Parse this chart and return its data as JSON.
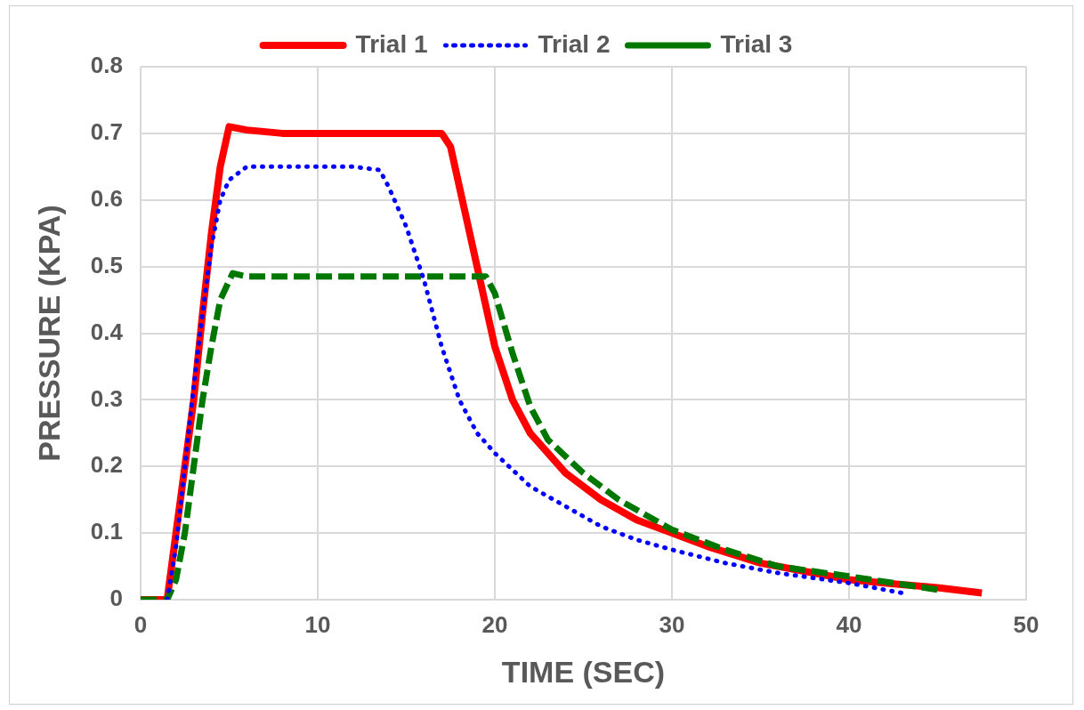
{
  "chart_data": {
    "type": "line",
    "xlabel": "TIME (SEC)",
    "ylabel": "PRESSURE (KPA)",
    "xlim": [
      0,
      50
    ],
    "xticks": [
      0,
      10,
      20,
      30,
      40,
      50
    ],
    "ylim": [
      0,
      0.8
    ],
    "yticks": [
      0,
      0.1,
      0.2,
      0.3,
      0.4,
      0.5,
      0.6,
      0.7,
      0.8
    ],
    "grid": true,
    "legend": "top",
    "marker": "none",
    "series": [
      {
        "name": "Trial 1",
        "color": "#ff0000",
        "line_style": "solid",
        "x": [
          0,
          1.5,
          2,
          2.5,
          3,
          3.5,
          4,
          4.5,
          5,
          6,
          8,
          10,
          12,
          14,
          16,
          17,
          17.5,
          18,
          18.5,
          19,
          19.5,
          20,
          21,
          22,
          23,
          24,
          26,
          28,
          30,
          32,
          35,
          38,
          40,
          42,
          45,
          47.5
        ],
        "values": [
          0,
          0,
          0.1,
          0.2,
          0.3,
          0.43,
          0.55,
          0.65,
          0.71,
          0.705,
          0.7,
          0.7,
          0.7,
          0.7,
          0.7,
          0.7,
          0.68,
          0.62,
          0.56,
          0.5,
          0.44,
          0.38,
          0.3,
          0.25,
          0.22,
          0.19,
          0.15,
          0.12,
          0.1,
          0.08,
          0.055,
          0.04,
          0.03,
          0.025,
          0.018,
          0.01
        ]
      },
      {
        "name": "Trial 2",
        "color": "#0000ff",
        "line_style": "dotted",
        "x": [
          1.5,
          2,
          2.5,
          3,
          3.5,
          4,
          4.5,
          5,
          6,
          8,
          10,
          12,
          13.5,
          14,
          15,
          16,
          17,
          18,
          19,
          20,
          22,
          24,
          26,
          28,
          30,
          33,
          36,
          40,
          43
        ],
        "values": [
          0,
          0.08,
          0.2,
          0.32,
          0.43,
          0.53,
          0.6,
          0.63,
          0.65,
          0.65,
          0.65,
          0.65,
          0.645,
          0.62,
          0.56,
          0.48,
          0.38,
          0.3,
          0.25,
          0.22,
          0.17,
          0.14,
          0.11,
          0.09,
          0.075,
          0.055,
          0.04,
          0.025,
          0.01
        ]
      },
      {
        "name": "Trial 3",
        "color": "#007700",
        "line_style": "dashed",
        "x": [
          0,
          1.5,
          2,
          2.5,
          3,
          3.5,
          4,
          4.5,
          5.2,
          6,
          10,
          15,
          19.5,
          20,
          21,
          22,
          23,
          25,
          27,
          30,
          33,
          36,
          40,
          45
        ],
        "values": [
          0,
          0,
          0.03,
          0.1,
          0.2,
          0.3,
          0.38,
          0.45,
          0.49,
          0.485,
          0.485,
          0.485,
          0.485,
          0.46,
          0.37,
          0.29,
          0.24,
          0.19,
          0.15,
          0.105,
          0.075,
          0.05,
          0.035,
          0.015
        ]
      }
    ]
  }
}
